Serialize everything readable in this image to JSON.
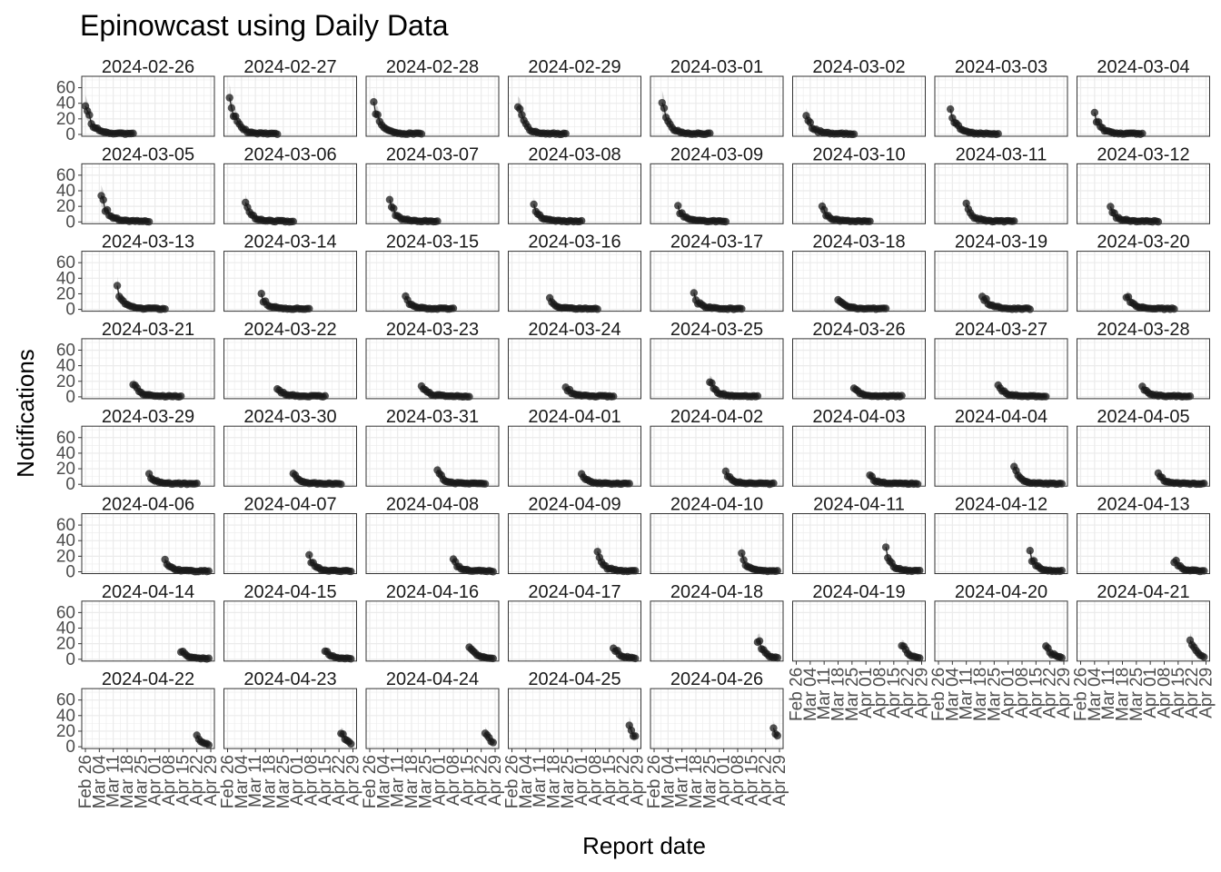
{
  "chart_data": {
    "type": "scatter",
    "title": "Epinowcast using Daily Data",
    "xlabel": "Report date",
    "ylabel": "Notifications",
    "ylim": [
      0,
      70
    ],
    "yticks": [
      "0",
      "20",
      "40",
      "60"
    ],
    "xlim": [
      "2024-02-26",
      "2024-04-29"
    ],
    "xticks": [
      {
        "date": "2024-02-26",
        "label": "Feb 26"
      },
      {
        "date": "2024-03-04",
        "label": "Mar 04"
      },
      {
        "date": "2024-03-11",
        "label": "Mar 11"
      },
      {
        "date": "2024-03-18",
        "label": "Mar 18"
      },
      {
        "date": "2024-03-25",
        "label": "Mar 25"
      },
      {
        "date": "2024-04-01",
        "label": "Apr 01"
      },
      {
        "date": "2024-04-08",
        "label": "Apr 08"
      },
      {
        "date": "2024-04-15",
        "label": "Apr 15"
      },
      {
        "date": "2024-04-22",
        "label": "Apr 22"
      },
      {
        "date": "2024-04-29",
        "label": "Apr 29"
      }
    ],
    "grid": true,
    "colors": {
      "points": "#1a1a1a",
      "ribbon": "#9e9e9e",
      "grid": "#ebebeb",
      "border": "#333333"
    },
    "facets": [
      {
        "label": "2024-02-26",
        "peak": 42
      },
      {
        "label": "2024-02-27",
        "peak": 53
      },
      {
        "label": "2024-02-28",
        "peak": 46
      },
      {
        "label": "2024-02-29",
        "peak": 38
      },
      {
        "label": "2024-03-01",
        "peak": 43
      },
      {
        "label": "2024-03-02",
        "peak": 25
      },
      {
        "label": "2024-03-03",
        "peak": 33
      },
      {
        "label": "2024-03-04",
        "peak": 28
      },
      {
        "label": "2024-03-05",
        "peak": 33
      },
      {
        "label": "2024-03-06",
        "peak": 24
      },
      {
        "label": "2024-03-07",
        "peak": 27
      },
      {
        "label": "2024-03-08",
        "peak": 21
      },
      {
        "label": "2024-03-09",
        "peak": 19
      },
      {
        "label": "2024-03-10",
        "peak": 18
      },
      {
        "label": "2024-03-11",
        "peak": 21
      },
      {
        "label": "2024-03-12",
        "peak": 17
      },
      {
        "label": "2024-03-13",
        "peak": 26
      },
      {
        "label": "2024-03-14",
        "peak": 17
      },
      {
        "label": "2024-03-15",
        "peak": 14
      },
      {
        "label": "2024-03-16",
        "peak": 12
      },
      {
        "label": "2024-03-17",
        "peak": 17
      },
      {
        "label": "2024-03-18",
        "peak": 16
      },
      {
        "label": "2024-03-19",
        "peak": 21
      },
      {
        "label": "2024-03-20",
        "peak": 19
      },
      {
        "label": "2024-03-21",
        "peak": 19
      },
      {
        "label": "2024-03-22",
        "peak": 12
      },
      {
        "label": "2024-03-23",
        "peak": 16
      },
      {
        "label": "2024-03-24",
        "peak": 14
      },
      {
        "label": "2024-03-25",
        "peak": 21
      },
      {
        "label": "2024-03-26",
        "peak": 12
      },
      {
        "label": "2024-03-27",
        "peak": 16
      },
      {
        "label": "2024-03-28",
        "peak": 14
      },
      {
        "label": "2024-03-29",
        "peak": 14
      },
      {
        "label": "2024-03-30",
        "peak": 14
      },
      {
        "label": "2024-03-31",
        "peak": 18
      },
      {
        "label": "2024-04-01",
        "peak": 13
      },
      {
        "label": "2024-04-02",
        "peak": 16
      },
      {
        "label": "2024-04-03",
        "peak": 11
      },
      {
        "label": "2024-04-04",
        "peak": 21
      },
      {
        "label": "2024-04-05",
        "peak": 13
      },
      {
        "label": "2024-04-06",
        "peak": 14
      },
      {
        "label": "2024-04-07",
        "peak": 19
      },
      {
        "label": "2024-04-08",
        "peak": 14
      },
      {
        "label": "2024-04-09",
        "peak": 22
      },
      {
        "label": "2024-04-10",
        "peak": 20
      },
      {
        "label": "2024-04-11",
        "peak": 26
      },
      {
        "label": "2024-04-12",
        "peak": 22
      },
      {
        "label": "2024-04-13",
        "peak": 16
      },
      {
        "label": "2024-04-14",
        "peak": 12
      },
      {
        "label": "2024-04-15",
        "peak": 13
      },
      {
        "label": "2024-04-16",
        "peak": 19
      },
      {
        "label": "2024-04-17",
        "peak": 17
      },
      {
        "label": "2024-04-18",
        "peak": 26
      },
      {
        "label": "2024-04-19",
        "peak": 20
      },
      {
        "label": "2024-04-20",
        "peak": 19
      },
      {
        "label": "2024-04-21",
        "peak": 27
      },
      {
        "label": "2024-04-22",
        "peak": 16
      },
      {
        "label": "2024-04-23",
        "peak": 18
      },
      {
        "label": "2024-04-24",
        "peak": 18
      },
      {
        "label": "2024-04-25",
        "peak": 28
      },
      {
        "label": "2024-04-26",
        "peak": 24
      }
    ]
  }
}
